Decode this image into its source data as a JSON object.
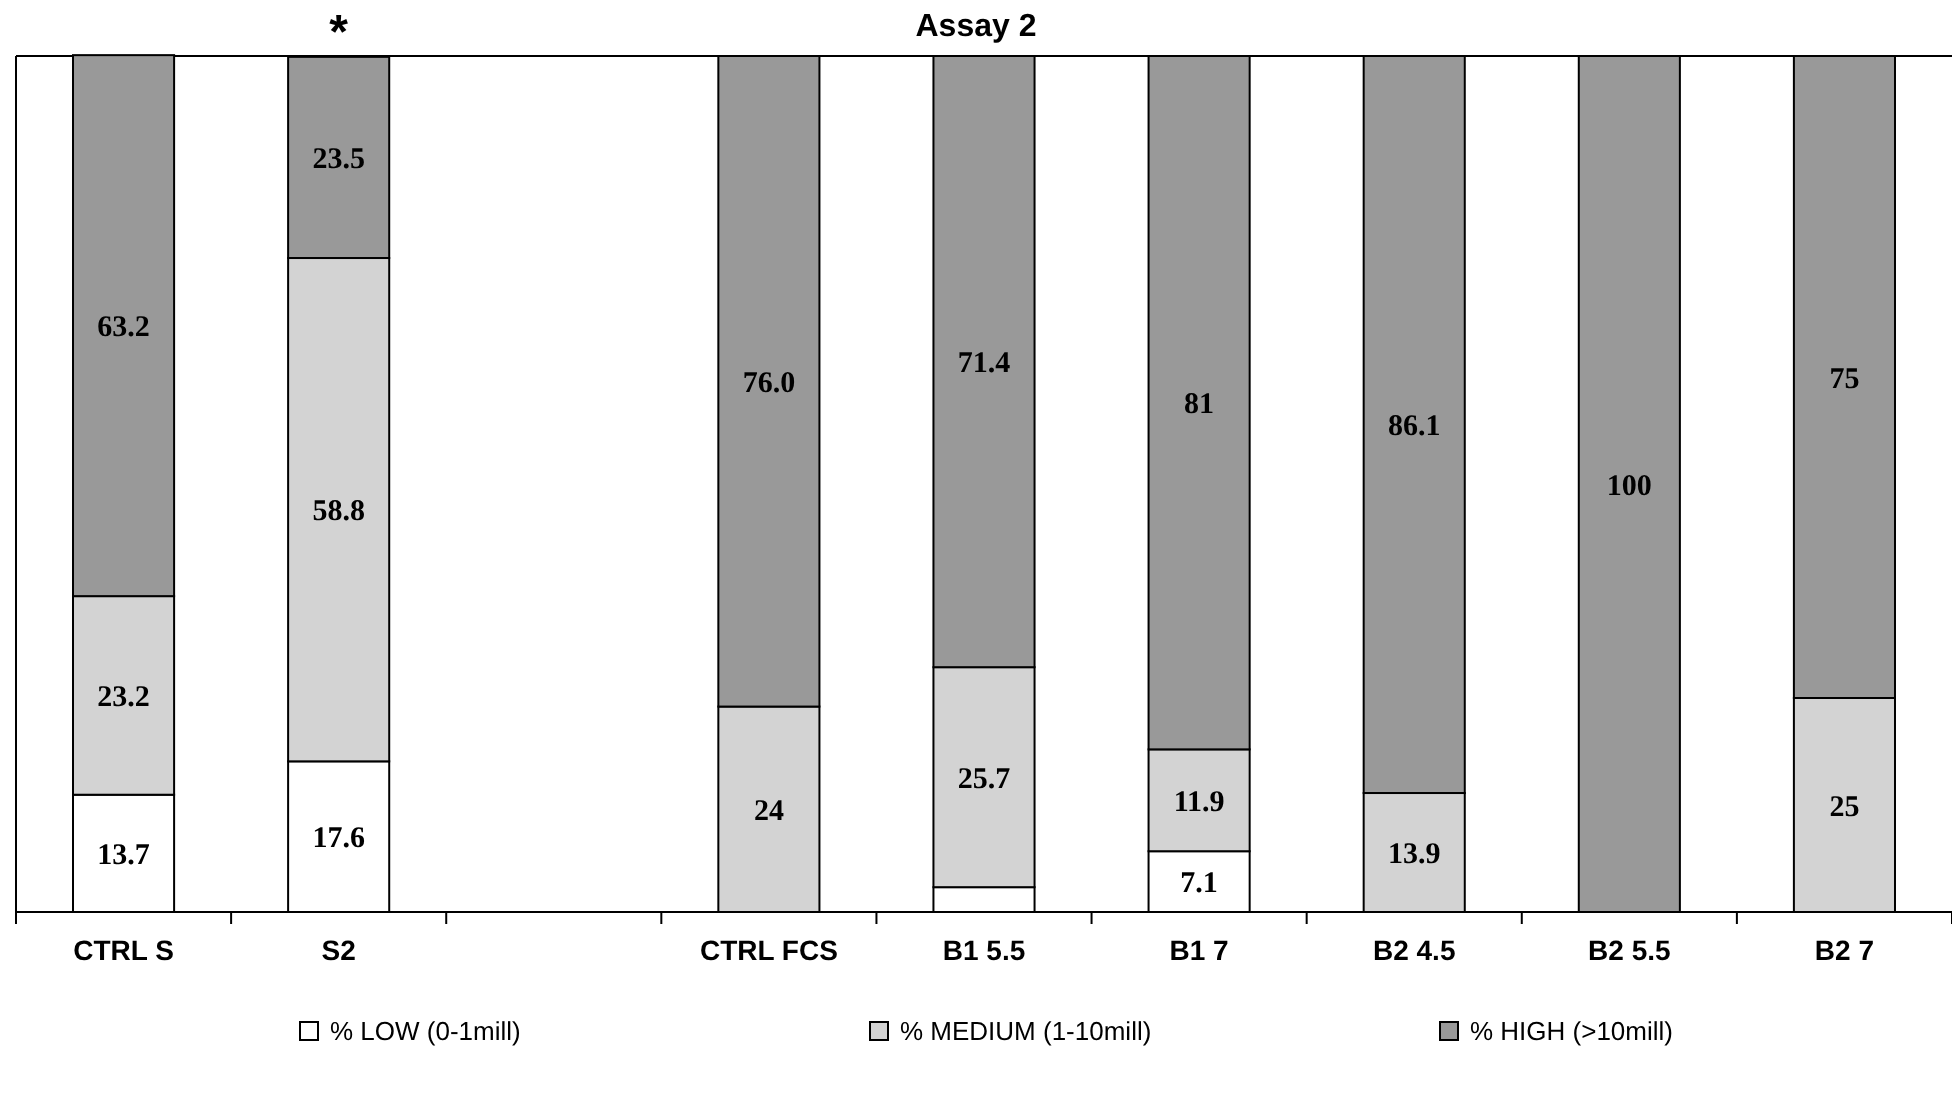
{
  "chart_data": {
    "type": "bar",
    "title": "Assay 2",
    "stacked": true,
    "categories": [
      "CTRL S",
      "S2",
      null,
      "CTRL FCS",
      "B1 5.5",
      "B1 7",
      "B2 4.5",
      "B2 5.5",
      "B2 7"
    ],
    "series": [
      {
        "name": "% LOW (0-1mill)",
        "color": "#ffffff",
        "values": [
          13.7,
          17.6,
          null,
          null,
          2.9,
          7.1,
          null,
          null,
          null
        ],
        "value_labels": [
          "13.7",
          "17.6",
          null,
          null,
          null,
          "7.1",
          null,
          null,
          null
        ]
      },
      {
        "name": "% MEDIUM (1-10mill)",
        "color": "#d3d3d3",
        "values": [
          23.2,
          58.8,
          null,
          24,
          25.7,
          11.9,
          13.9,
          null,
          25
        ],
        "value_labels": [
          "23.2",
          "58.8",
          null,
          "24",
          "25.7",
          "11.9",
          "13.9",
          null,
          "25"
        ]
      },
      {
        "name": "% HIGH (>10mill)",
        "color": "#999999",
        "values": [
          63.2,
          23.5,
          null,
          76.0,
          71.4,
          81,
          86.1,
          100,
          75
        ],
        "value_labels": [
          "63.2",
          "23.5",
          null,
          "76.0",
          "71.4",
          "81",
          "86.1",
          "100",
          "75"
        ]
      }
    ],
    "ylim": [
      0,
      100
    ],
    "tick_labels": "x",
    "legend": "bottom",
    "annotations": [
      {
        "text": "*",
        "x": "S2",
        "y": 100
      }
    ]
  }
}
